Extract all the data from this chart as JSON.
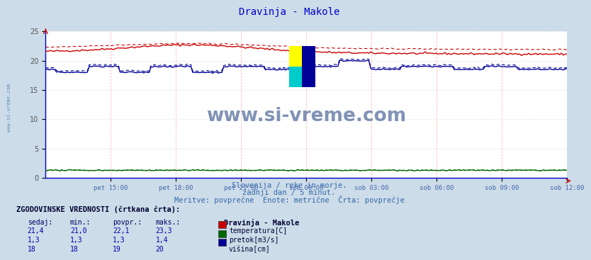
{
  "title": "Dravinja - Makole",
  "bg_color": "#ccdce8",
  "plot_bg_color": "#ffffff",
  "xlabel_ticks": [
    "pet 15:00",
    "pet 18:00",
    "pet 21:00",
    "sob 00:00",
    "sob 03:00",
    "sob 06:00",
    "sob 09:00",
    "sob 12:00"
  ],
  "ylabel_ticks": [
    0,
    5,
    10,
    15,
    20,
    25
  ],
  "ymin": 0,
  "ymax": 25,
  "n_points": 288,
  "subtitle1": "Slovenija / reke in morje.",
  "subtitle2": "zadnji dan / 5 minut.",
  "subtitle3": "Meritve: povprečne  Enote: metrične  Črta: povprečje",
  "legend_title": "ZGODOVINSKE VREDNOSTI (črtkana črta):",
  "col_headers": [
    "sedaj:",
    "min.:",
    "povpr.:",
    "maks.:"
  ],
  "row1": [
    "21,4",
    "21,0",
    "22,1",
    "23,3"
  ],
  "row2": [
    "1,3",
    "1,3",
    "1,3",
    "1,4"
  ],
  "row3": [
    "18",
    "18",
    "19",
    "20"
  ],
  "legend_station": "Dravinja - Makole",
  "legend_items": [
    "temperatura[C]",
    "pretok[m3/s]",
    "višina[cm]"
  ],
  "legend_colors": [
    "#cc0000",
    "#006600",
    "#000099"
  ],
  "watermark": "www.si-vreme.com",
  "watermark_color": "#1a3a7a",
  "left_label": "www.si-vreme.com",
  "left_label_color": "#4477aa",
  "temp_color": "#cc0000",
  "flow_color": "#006600",
  "height_color": "#000099",
  "axis_color": "#0000cc",
  "tick_color": "#4466aa"
}
